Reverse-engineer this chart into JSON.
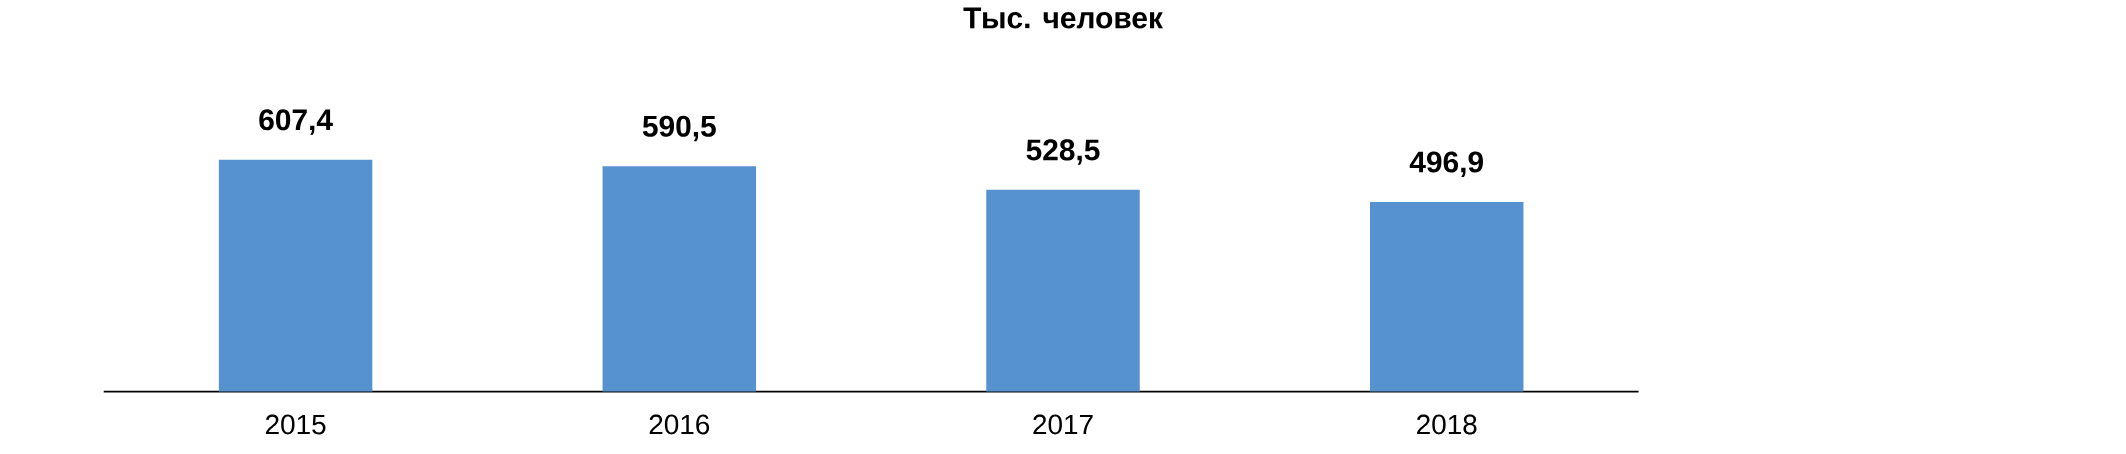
{
  "chart_data": {
    "type": "bar",
    "title": "Тыс. человек",
    "categories": [
      "2015",
      "2016",
      "2017",
      "2018"
    ],
    "values": [
      607.4,
      590.5,
      528.5,
      496.9
    ],
    "value_labels": [
      "607,4",
      "590,5",
      "528,5",
      "496,9"
    ],
    "color": "#5692cf"
  }
}
